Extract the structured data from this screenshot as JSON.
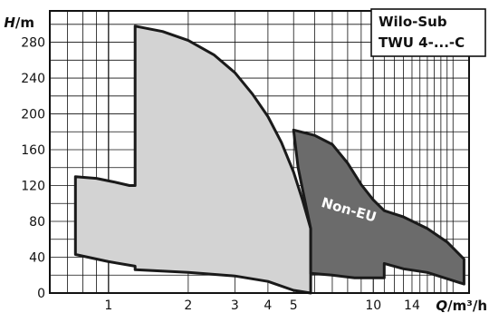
{
  "chart_data": {
    "type": "area",
    "x_scale": "log",
    "xlabel_parts": [
      "Q",
      "/m³/h"
    ],
    "ylabel_parts": [
      "H",
      "/m"
    ],
    "y_ticks": [
      0,
      40,
      80,
      120,
      160,
      200,
      240,
      280
    ],
    "x_ticks": [
      {
        "value": 1,
        "label": "1"
      },
      {
        "value": 2,
        "label": "2"
      },
      {
        "value": 3,
        "label": "3"
      },
      {
        "value": 4,
        "label": "4"
      },
      {
        "value": 5,
        "label": "5"
      },
      {
        "value": 10,
        "label": "10"
      },
      {
        "value": 14,
        "label": "14"
      }
    ],
    "xlim": [
      0.6,
      23
    ],
    "ylim": [
      0,
      315
    ],
    "grid": true,
    "legend_box": [
      "Wilo-Sub",
      "TWU 4-...-C"
    ],
    "series": [
      {
        "label": "",
        "fill": "#d3d3d3",
        "points": [
          [
            0.75,
            130
          ],
          [
            0.9,
            128
          ],
          [
            1.05,
            124
          ],
          [
            1.2,
            120
          ],
          [
            1.26,
            120
          ],
          [
            1.26,
            298
          ],
          [
            1.6,
            292
          ],
          [
            2.0,
            282
          ],
          [
            2.5,
            266
          ],
          [
            3.0,
            246
          ],
          [
            3.5,
            222
          ],
          [
            4.0,
            197
          ],
          [
            4.5,
            168
          ],
          [
            5.0,
            135
          ],
          [
            5.4,
            104
          ],
          [
            5.8,
            72
          ],
          [
            5.8,
            0
          ],
          [
            5.0,
            3
          ],
          [
            4.0,
            13
          ],
          [
            3.0,
            19
          ],
          [
            2.0,
            23
          ],
          [
            1.26,
            26
          ],
          [
            1.26,
            30
          ],
          [
            1.0,
            35
          ],
          [
            0.75,
            43
          ]
        ]
      },
      {
        "label": "Non-EU",
        "fill": "#6b6b6b",
        "points": [
          [
            5.0,
            182
          ],
          [
            6.0,
            176
          ],
          [
            7.0,
            166
          ],
          [
            8.0,
            145
          ],
          [
            9.0,
            121
          ],
          [
            10.0,
            104
          ],
          [
            11.0,
            92
          ],
          [
            13.0,
            85
          ],
          [
            16.0,
            72
          ],
          [
            19.0,
            57
          ],
          [
            22.0,
            38
          ],
          [
            22.0,
            10
          ],
          [
            19.0,
            16
          ],
          [
            16.0,
            23
          ],
          [
            13.0,
            27
          ],
          [
            11.0,
            33
          ],
          [
            11.0,
            17
          ],
          [
            8.5,
            17
          ],
          [
            7.0,
            20
          ],
          [
            5.8,
            22
          ],
          [
            5.8,
            72
          ],
          [
            5.5,
            105
          ],
          [
            5.2,
            140
          ]
        ]
      }
    ]
  }
}
